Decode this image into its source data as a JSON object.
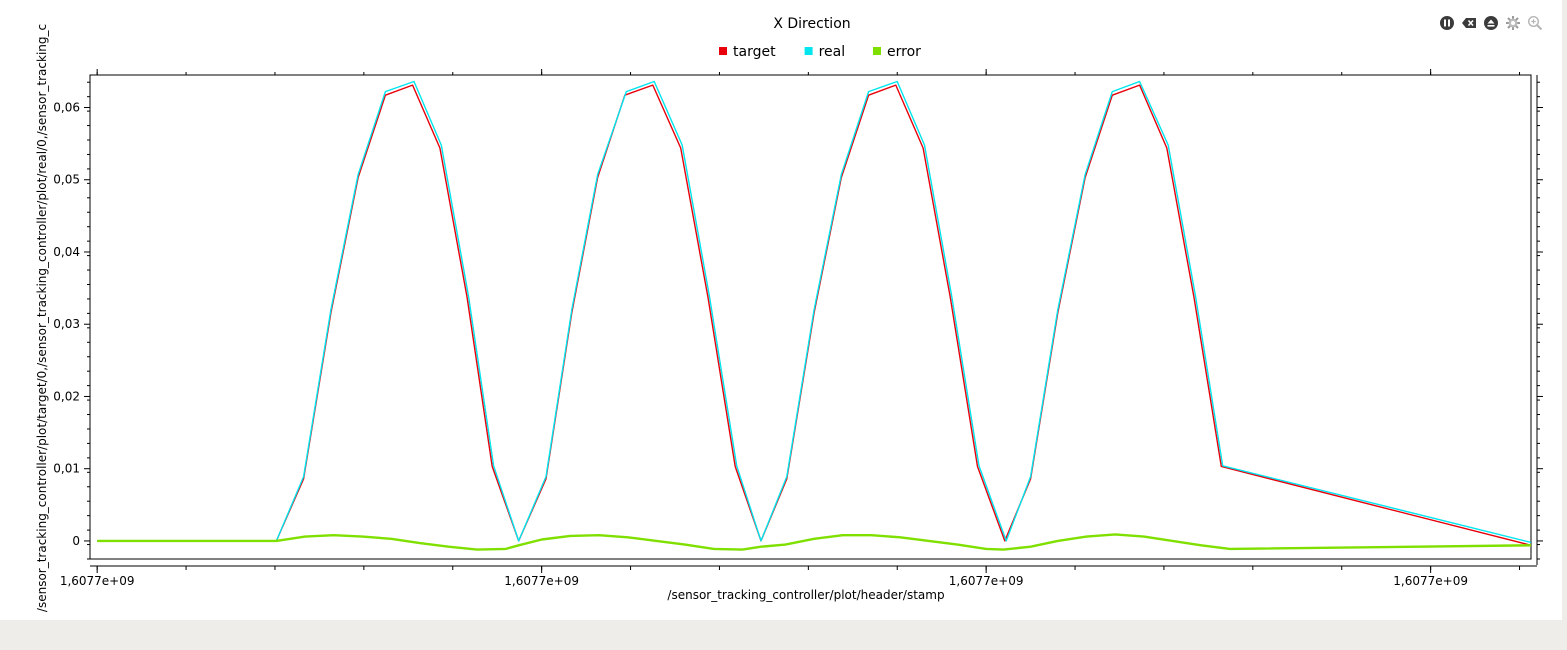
{
  "toolbar": {
    "buttons": [
      {
        "name": "pause-button",
        "icon": "pause-icon"
      },
      {
        "name": "clear-button",
        "icon": "clear-icon"
      },
      {
        "name": "eject-button",
        "icon": "eject-icon"
      },
      {
        "name": "settings-button",
        "icon": "gear-icon"
      },
      {
        "name": "zoom-button",
        "icon": "zoom-icon"
      }
    ]
  },
  "chart_data": {
    "type": "line",
    "title": "X Direction",
    "xlabel": "/sensor_tracking_controller/plot/header/stamp",
    "ylabel": "/sensor_tracking_controller/plot/target/0,/sensor_tracking_controller/plot/real/0,/sensor_tracking_c",
    "x_tick_labels": [
      "1,6077e+09",
      "1,6077e+09",
      "1,6077e+09",
      "1,6077e+09"
    ],
    "x_tick_positions": [
      0,
      0.31,
      0.62,
      0.93
    ],
    "xlim": [
      -0.005,
      1.0
    ],
    "y_ticks": [
      0,
      0.01,
      0.02,
      0.03,
      0.04,
      0.05,
      0.06
    ],
    "y_tick_labels": [
      "0",
      "0,01",
      "0,02",
      "0,03",
      "0,04",
      "0,05",
      "0,06"
    ],
    "ylim": [
      -0.0025,
      0.0645
    ],
    "grid": false,
    "legend": "top-center",
    "series": [
      {
        "name": "target",
        "color": "#e8000b",
        "x": [
          0,
          0.125,
          0.144,
          0.163,
          0.182,
          0.201,
          0.22,
          0.239,
          0.258,
          0.2755,
          0.294,
          0.313,
          0.331,
          0.349,
          0.368,
          0.3875,
          0.407,
          0.426,
          0.445,
          0.463,
          0.481,
          0.5,
          0.519,
          0.538,
          0.557,
          0.576,
          0.595,
          0.614,
          0.633,
          0.651,
          0.67,
          0.689,
          0.708,
          0.727,
          0.746,
          0.765,
          0.784,
          1.0
        ],
        "y": [
          0,
          0,
          0.0086,
          0.0316,
          0.0503,
          0.0617,
          0.0631,
          0.0544,
          0.0337,
          0.0103,
          0,
          0.0086,
          0.0316,
          0.0503,
          0.0617,
          0.0631,
          0.0544,
          0.0337,
          0.0103,
          0,
          0.0086,
          0.0316,
          0.0503,
          0.0617,
          0.0631,
          0.0544,
          0.0337,
          0.0103,
          0,
          0.0086,
          0.0316,
          0.0503,
          0.0617,
          0.0631,
          0.0544,
          0.0337,
          0.0103,
          -0.0006
        ]
      },
      {
        "name": "real",
        "color": "#00e5ee",
        "x": [
          0,
          0.125,
          0.144,
          0.163,
          0.182,
          0.201,
          0.221,
          0.24,
          0.259,
          0.2765,
          0.294,
          0.313,
          0.331,
          0.349,
          0.369,
          0.3885,
          0.408,
          0.427,
          0.446,
          0.463,
          0.481,
          0.5,
          0.519,
          0.538,
          0.558,
          0.577,
          0.596,
          0.615,
          0.634,
          0.651,
          0.67,
          0.689,
          0.708,
          0.727,
          0.747,
          0.766,
          0.785,
          1.0
        ],
        "y": [
          0,
          0,
          0.0089,
          0.032,
          0.0507,
          0.0622,
          0.0636,
          0.0548,
          0.0339,
          0.0104,
          0,
          0.0089,
          0.032,
          0.0507,
          0.0622,
          0.0636,
          0.0548,
          0.0339,
          0.0104,
          0,
          0.0089,
          0.032,
          0.0507,
          0.0622,
          0.0636,
          0.0548,
          0.0339,
          0.0104,
          0,
          0.0089,
          0.032,
          0.0507,
          0.0622,
          0.0636,
          0.0548,
          0.0339,
          0.0104,
          -0.0002
        ]
      },
      {
        "name": "error",
        "color": "#7fe000",
        "x": [
          0,
          0.125,
          0.145,
          0.165,
          0.185,
          0.205,
          0.225,
          0.245,
          0.265,
          0.285,
          0.294,
          0.31,
          0.33,
          0.35,
          0.37,
          0.39,
          0.41,
          0.43,
          0.45,
          0.463,
          0.48,
          0.5,
          0.52,
          0.54,
          0.56,
          0.58,
          0.6,
          0.62,
          0.632,
          0.651,
          0.67,
          0.69,
          0.71,
          0.73,
          0.75,
          0.77,
          0.79,
          1.0
        ],
        "y": [
          0,
          0,
          0.0006,
          0.0008,
          0.0006,
          0.0003,
          -0.0003,
          -0.0008,
          -0.0012,
          -0.0011,
          -0.0006,
          0.0002,
          0.0007,
          0.0008,
          0.0005,
          0,
          -0.0005,
          -0.0011,
          -0.0012,
          -0.0008,
          -0.0005,
          0.0003,
          0.0008,
          0.0008,
          0.0005,
          0,
          -0.0005,
          -0.0011,
          -0.0012,
          -0.0008,
          0,
          0.0006,
          0.0009,
          0.0006,
          0,
          -0.0006,
          -0.0011,
          -0.0006
        ]
      }
    ]
  }
}
